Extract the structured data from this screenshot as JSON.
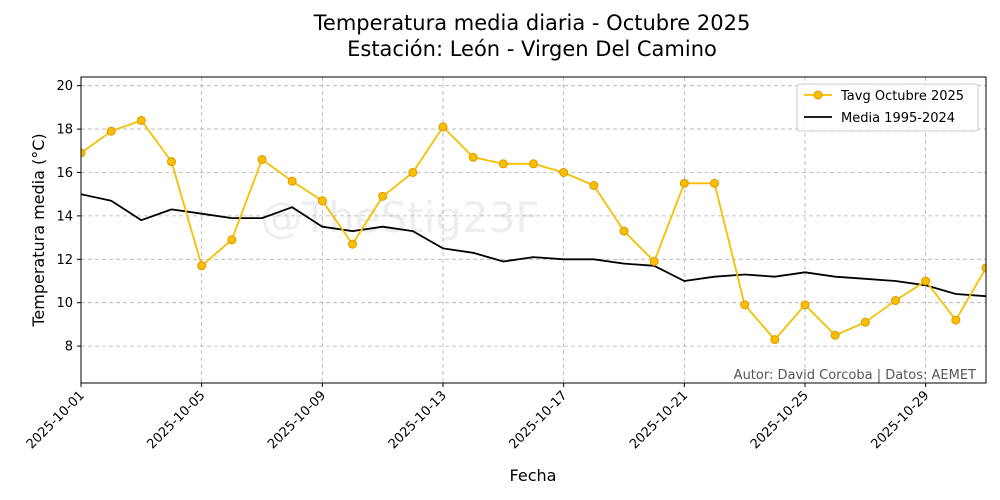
{
  "chart_data": {
    "type": "line",
    "title": "Temperatura media diaria - Octubre 2025",
    "subtitle": "Estación: León - Virgen Del Camino",
    "xlabel": "Fecha",
    "ylabel": "Temperatura media (°C)",
    "x_start": "2025-10-01",
    "x_end": "2025-10-31",
    "xlim": [
      "2025-10-01",
      "2025-10-31"
    ],
    "ylim": [
      6.3,
      20.4
    ],
    "x_ticks": [
      "2025-10-01",
      "2025-10-05",
      "2025-10-09",
      "2025-10-13",
      "2025-10-17",
      "2025-10-21",
      "2025-10-25",
      "2025-10-29"
    ],
    "y_ticks": [
      8,
      10,
      12,
      14,
      16,
      18,
      20
    ],
    "grid": true,
    "legend_position": "top-right",
    "series": [
      {
        "name": "Tavg Octubre 2025",
        "color": "#f5c000",
        "marker_edge": "#e69500",
        "marker": "circle",
        "values": [
          16.9,
          17.9,
          18.4,
          16.5,
          11.7,
          12.9,
          16.6,
          15.6,
          14.7,
          12.7,
          14.9,
          16.0,
          18.1,
          16.7,
          16.4,
          16.4,
          16.0,
          15.4,
          13.3,
          11.9,
          15.5,
          15.5,
          9.9,
          8.3,
          9.9,
          8.5,
          9.1,
          10.1,
          11.0,
          9.2,
          11.6
        ]
      },
      {
        "name": "Media 1995-2024",
        "color": "#000000",
        "marker": "none",
        "values": [
          15.0,
          14.7,
          13.8,
          14.3,
          14.1,
          13.9,
          13.9,
          14.4,
          13.5,
          13.3,
          13.5,
          13.3,
          12.5,
          12.3,
          11.9,
          12.1,
          12.0,
          12.0,
          11.8,
          11.7,
          11.0,
          11.2,
          11.3,
          11.2,
          11.4,
          11.2,
          11.1,
          11.0,
          10.8,
          10.4,
          10.3
        ]
      }
    ],
    "annotation": "Autor: David Corcoba | Datos: AEMET",
    "watermark": "@TheStig23F"
  }
}
